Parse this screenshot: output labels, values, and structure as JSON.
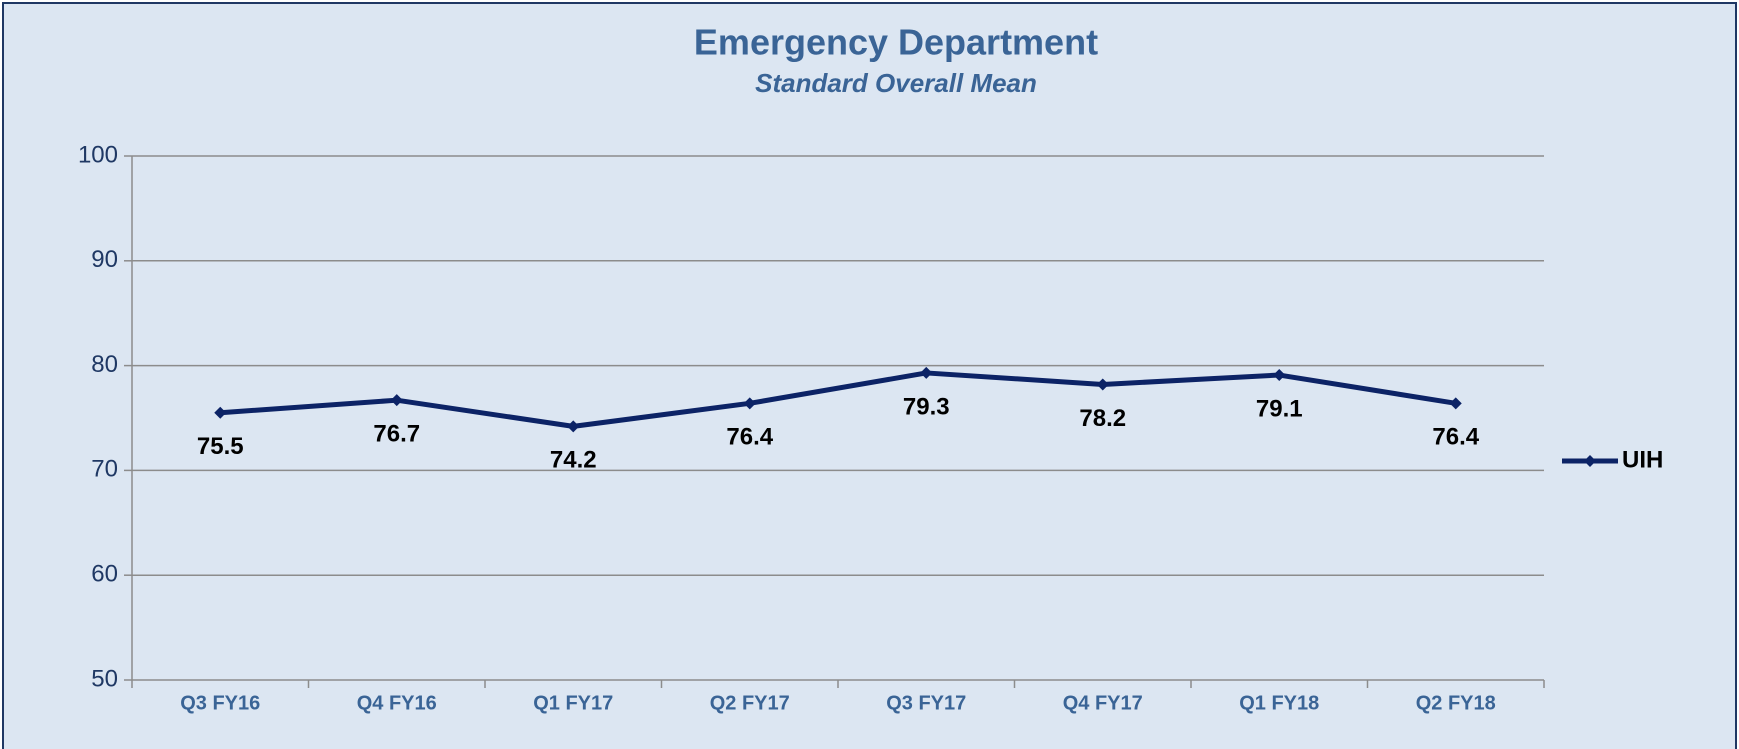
{
  "chart_data": {
    "type": "line",
    "title": "Emergency Department",
    "subtitle": "Standard Overall Mean",
    "categories": [
      "Q3 FY16",
      "Q4 FY16",
      "Q1 FY17",
      "Q2 FY17",
      "Q3 FY17",
      "Q4 FY17",
      "Q1 FY18",
      "Q2 FY18"
    ],
    "series": [
      {
        "name": "UIH",
        "color": "#0c2366",
        "values": [
          75.5,
          76.7,
          74.2,
          76.4,
          79.3,
          78.2,
          79.1,
          76.4
        ]
      }
    ],
    "ylim": [
      50,
      100
    ],
    "yticks": [
      50,
      60,
      70,
      80,
      90,
      100
    ],
    "grid": true,
    "legend": "right"
  }
}
